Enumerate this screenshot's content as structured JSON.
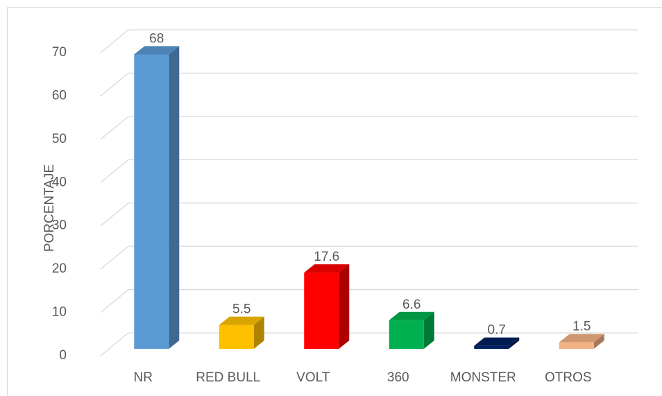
{
  "chart_data": {
    "type": "bar3d",
    "y_axis_label": "PORCENTAJE",
    "categories": [
      "NR",
      "RED BULL",
      "VOLT",
      "360",
      "MONSTER",
      "OTROS"
    ],
    "values": [
      68,
      5.5,
      17.6,
      6.6,
      0.7,
      1.5
    ],
    "colors": [
      "#5b9bd5",
      "#ffc000",
      "#ff0000",
      "#00b050",
      "#002060",
      "#f4b183"
    ],
    "ylim": [
      0,
      70
    ],
    "yticks": [
      0,
      10,
      20,
      30,
      40,
      50,
      60,
      70
    ],
    "grid": true
  }
}
